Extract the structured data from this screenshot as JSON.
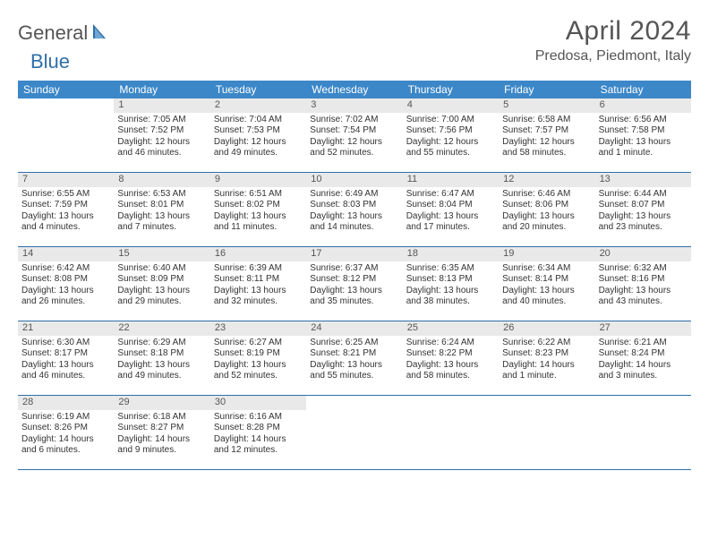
{
  "brand": {
    "part1": "General",
    "part2": "Blue"
  },
  "title": "April 2024",
  "location": "Predosa, Piedmont, Italy",
  "colors": {
    "header_bg": "#3b87c8",
    "accent": "#2f6fa8",
    "daynum_bg": "#e9e9e9",
    "text": "#333333",
    "muted": "#555555"
  },
  "days_of_week": [
    "Sunday",
    "Monday",
    "Tuesday",
    "Wednesday",
    "Thursday",
    "Friday",
    "Saturday"
  ],
  "weeks": [
    [
      {
        "n": "",
        "sunrise": "",
        "sunset": "",
        "daylight": ""
      },
      {
        "n": "1",
        "sunrise": "Sunrise: 7:05 AM",
        "sunset": "Sunset: 7:52 PM",
        "daylight": "Daylight: 12 hours and 46 minutes."
      },
      {
        "n": "2",
        "sunrise": "Sunrise: 7:04 AM",
        "sunset": "Sunset: 7:53 PM",
        "daylight": "Daylight: 12 hours and 49 minutes."
      },
      {
        "n": "3",
        "sunrise": "Sunrise: 7:02 AM",
        "sunset": "Sunset: 7:54 PM",
        "daylight": "Daylight: 12 hours and 52 minutes."
      },
      {
        "n": "4",
        "sunrise": "Sunrise: 7:00 AM",
        "sunset": "Sunset: 7:56 PM",
        "daylight": "Daylight: 12 hours and 55 minutes."
      },
      {
        "n": "5",
        "sunrise": "Sunrise: 6:58 AM",
        "sunset": "Sunset: 7:57 PM",
        "daylight": "Daylight: 12 hours and 58 minutes."
      },
      {
        "n": "6",
        "sunrise": "Sunrise: 6:56 AM",
        "sunset": "Sunset: 7:58 PM",
        "daylight": "Daylight: 13 hours and 1 minute."
      }
    ],
    [
      {
        "n": "7",
        "sunrise": "Sunrise: 6:55 AM",
        "sunset": "Sunset: 7:59 PM",
        "daylight": "Daylight: 13 hours and 4 minutes."
      },
      {
        "n": "8",
        "sunrise": "Sunrise: 6:53 AM",
        "sunset": "Sunset: 8:01 PM",
        "daylight": "Daylight: 13 hours and 7 minutes."
      },
      {
        "n": "9",
        "sunrise": "Sunrise: 6:51 AM",
        "sunset": "Sunset: 8:02 PM",
        "daylight": "Daylight: 13 hours and 11 minutes."
      },
      {
        "n": "10",
        "sunrise": "Sunrise: 6:49 AM",
        "sunset": "Sunset: 8:03 PM",
        "daylight": "Daylight: 13 hours and 14 minutes."
      },
      {
        "n": "11",
        "sunrise": "Sunrise: 6:47 AM",
        "sunset": "Sunset: 8:04 PM",
        "daylight": "Daylight: 13 hours and 17 minutes."
      },
      {
        "n": "12",
        "sunrise": "Sunrise: 6:46 AM",
        "sunset": "Sunset: 8:06 PM",
        "daylight": "Daylight: 13 hours and 20 minutes."
      },
      {
        "n": "13",
        "sunrise": "Sunrise: 6:44 AM",
        "sunset": "Sunset: 8:07 PM",
        "daylight": "Daylight: 13 hours and 23 minutes."
      }
    ],
    [
      {
        "n": "14",
        "sunrise": "Sunrise: 6:42 AM",
        "sunset": "Sunset: 8:08 PM",
        "daylight": "Daylight: 13 hours and 26 minutes."
      },
      {
        "n": "15",
        "sunrise": "Sunrise: 6:40 AM",
        "sunset": "Sunset: 8:09 PM",
        "daylight": "Daylight: 13 hours and 29 minutes."
      },
      {
        "n": "16",
        "sunrise": "Sunrise: 6:39 AM",
        "sunset": "Sunset: 8:11 PM",
        "daylight": "Daylight: 13 hours and 32 minutes."
      },
      {
        "n": "17",
        "sunrise": "Sunrise: 6:37 AM",
        "sunset": "Sunset: 8:12 PM",
        "daylight": "Daylight: 13 hours and 35 minutes."
      },
      {
        "n": "18",
        "sunrise": "Sunrise: 6:35 AM",
        "sunset": "Sunset: 8:13 PM",
        "daylight": "Daylight: 13 hours and 38 minutes."
      },
      {
        "n": "19",
        "sunrise": "Sunrise: 6:34 AM",
        "sunset": "Sunset: 8:14 PM",
        "daylight": "Daylight: 13 hours and 40 minutes."
      },
      {
        "n": "20",
        "sunrise": "Sunrise: 6:32 AM",
        "sunset": "Sunset: 8:16 PM",
        "daylight": "Daylight: 13 hours and 43 minutes."
      }
    ],
    [
      {
        "n": "21",
        "sunrise": "Sunrise: 6:30 AM",
        "sunset": "Sunset: 8:17 PM",
        "daylight": "Daylight: 13 hours and 46 minutes."
      },
      {
        "n": "22",
        "sunrise": "Sunrise: 6:29 AM",
        "sunset": "Sunset: 8:18 PM",
        "daylight": "Daylight: 13 hours and 49 minutes."
      },
      {
        "n": "23",
        "sunrise": "Sunrise: 6:27 AM",
        "sunset": "Sunset: 8:19 PM",
        "daylight": "Daylight: 13 hours and 52 minutes."
      },
      {
        "n": "24",
        "sunrise": "Sunrise: 6:25 AM",
        "sunset": "Sunset: 8:21 PM",
        "daylight": "Daylight: 13 hours and 55 minutes."
      },
      {
        "n": "25",
        "sunrise": "Sunrise: 6:24 AM",
        "sunset": "Sunset: 8:22 PM",
        "daylight": "Daylight: 13 hours and 58 minutes."
      },
      {
        "n": "26",
        "sunrise": "Sunrise: 6:22 AM",
        "sunset": "Sunset: 8:23 PM",
        "daylight": "Daylight: 14 hours and 1 minute."
      },
      {
        "n": "27",
        "sunrise": "Sunrise: 6:21 AM",
        "sunset": "Sunset: 8:24 PM",
        "daylight": "Daylight: 14 hours and 3 minutes."
      }
    ],
    [
      {
        "n": "28",
        "sunrise": "Sunrise: 6:19 AM",
        "sunset": "Sunset: 8:26 PM",
        "daylight": "Daylight: 14 hours and 6 minutes."
      },
      {
        "n": "29",
        "sunrise": "Sunrise: 6:18 AM",
        "sunset": "Sunset: 8:27 PM",
        "daylight": "Daylight: 14 hours and 9 minutes."
      },
      {
        "n": "30",
        "sunrise": "Sunrise: 6:16 AM",
        "sunset": "Sunset: 8:28 PM",
        "daylight": "Daylight: 14 hours and 12 minutes."
      },
      {
        "n": "",
        "sunrise": "",
        "sunset": "",
        "daylight": ""
      },
      {
        "n": "",
        "sunrise": "",
        "sunset": "",
        "daylight": ""
      },
      {
        "n": "",
        "sunrise": "",
        "sunset": "",
        "daylight": ""
      },
      {
        "n": "",
        "sunrise": "",
        "sunset": "",
        "daylight": ""
      }
    ]
  ]
}
